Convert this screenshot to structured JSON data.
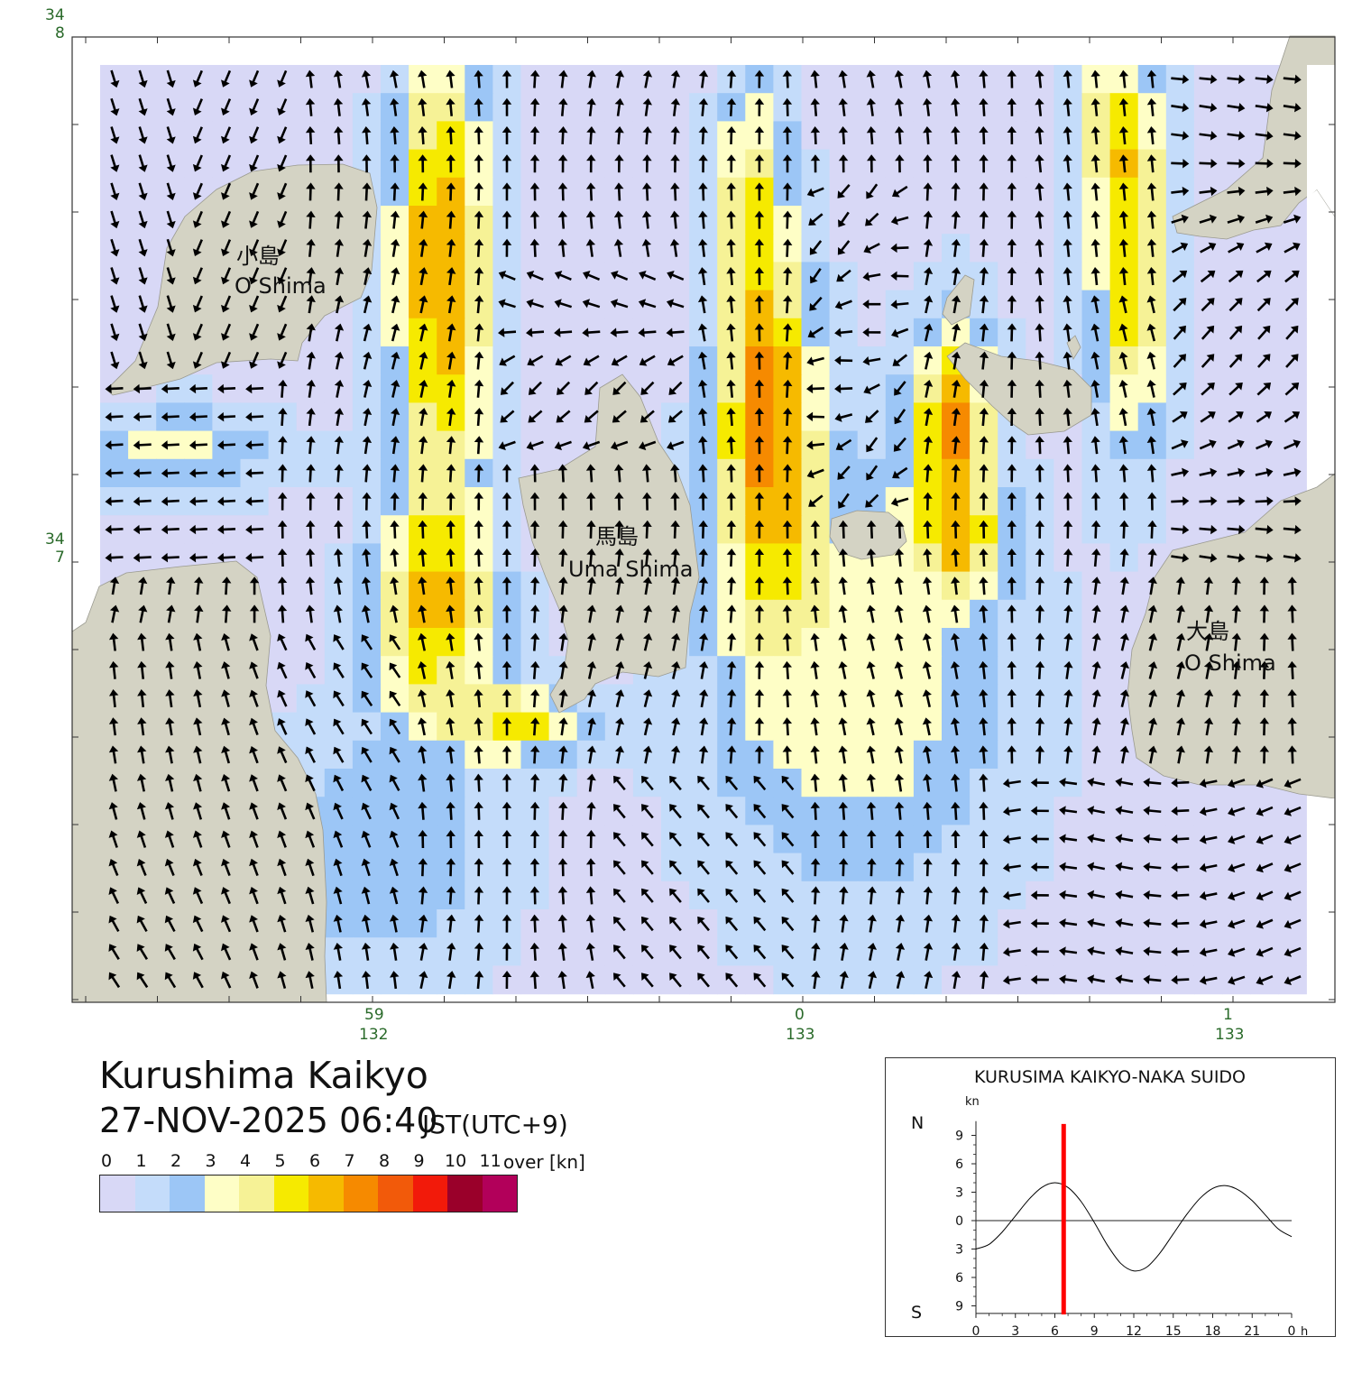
{
  "map": {
    "islands": [
      {
        "jp": "小島",
        "en": "O Shima"
      },
      {
        "jp": "馬島",
        "en": "Uma Shima"
      },
      {
        "jp": "大島",
        "en": "O Shima"
      }
    ],
    "lat_labels": [
      {
        "deg": "34",
        "min": "8"
      },
      {
        "deg": "34",
        "min": "7"
      }
    ],
    "lon_labels": [
      {
        "deg": "132",
        "min": "59"
      },
      {
        "deg": "133",
        "min": "0"
      },
      {
        "deg": "133",
        "min": "1"
      }
    ],
    "colors": {
      "land": "#d4d3c4",
      "sea_background": "#ffffff",
      "arrow": "#000000",
      "coord_text": "#2a6a2a"
    }
  },
  "header": {
    "title": "Kurushima Kaikyo",
    "datetime": "27-NOV-2025 06:40",
    "timezone": "JST(UTC+9)"
  },
  "legend": {
    "labels": [
      "0",
      "1",
      "2",
      "3",
      "4",
      "5",
      "6",
      "7",
      "8",
      "9",
      "10",
      "11"
    ],
    "over_label": "over [kn]",
    "colors": [
      "#d8d8f6",
      "#c4dcfa",
      "#9cc6f6",
      "#fefec6",
      "#f6f296",
      "#f6ea00",
      "#f6ba00",
      "#f68a00",
      "#f25a0a",
      "#f21a0a",
      "#9a002a",
      "#b2005a"
    ]
  },
  "tide_graph": {
    "title": "KURUSIMA KAIKYO-NAKA SUIDO",
    "unit": "kn",
    "north_label": "N",
    "south_label": "S",
    "y_ticks": [
      "9",
      "6",
      "3",
      "0",
      "3",
      "6",
      "9"
    ],
    "x_ticks": [
      "0",
      "3",
      "6",
      "9",
      "12",
      "15",
      "18",
      "21",
      "0"
    ],
    "x_unit": "h",
    "current_hour": 6.67,
    "curve_color": "#000000",
    "marker_color": "#ff0000",
    "samples": [
      {
        "h": 0,
        "v": -3.0
      },
      {
        "h": 1,
        "v": -2.5
      },
      {
        "h": 2,
        "v": -1.2
      },
      {
        "h": 3,
        "v": 0.5
      },
      {
        "h": 4,
        "v": 2.2
      },
      {
        "h": 5,
        "v": 3.5
      },
      {
        "h": 6,
        "v": 4.0
      },
      {
        "h": 7,
        "v": 3.5
      },
      {
        "h": 8,
        "v": 2.0
      },
      {
        "h": 9,
        "v": -0.2
      },
      {
        "h": 10,
        "v": -2.6
      },
      {
        "h": 11,
        "v": -4.5
      },
      {
        "h": 12,
        "v": -5.3
      },
      {
        "h": 13,
        "v": -4.9
      },
      {
        "h": 14,
        "v": -3.4
      },
      {
        "h": 15,
        "v": -1.4
      },
      {
        "h": 16,
        "v": 0.6
      },
      {
        "h": 17,
        "v": 2.3
      },
      {
        "h": 18,
        "v": 3.4
      },
      {
        "h": 19,
        "v": 3.7
      },
      {
        "h": 20,
        "v": 3.2
      },
      {
        "h": 21,
        "v": 2.1
      },
      {
        "h": 22,
        "v": 0.6
      },
      {
        "h": 23,
        "v": -0.9
      },
      {
        "h": 24,
        "v": -1.7
      }
    ]
  }
}
